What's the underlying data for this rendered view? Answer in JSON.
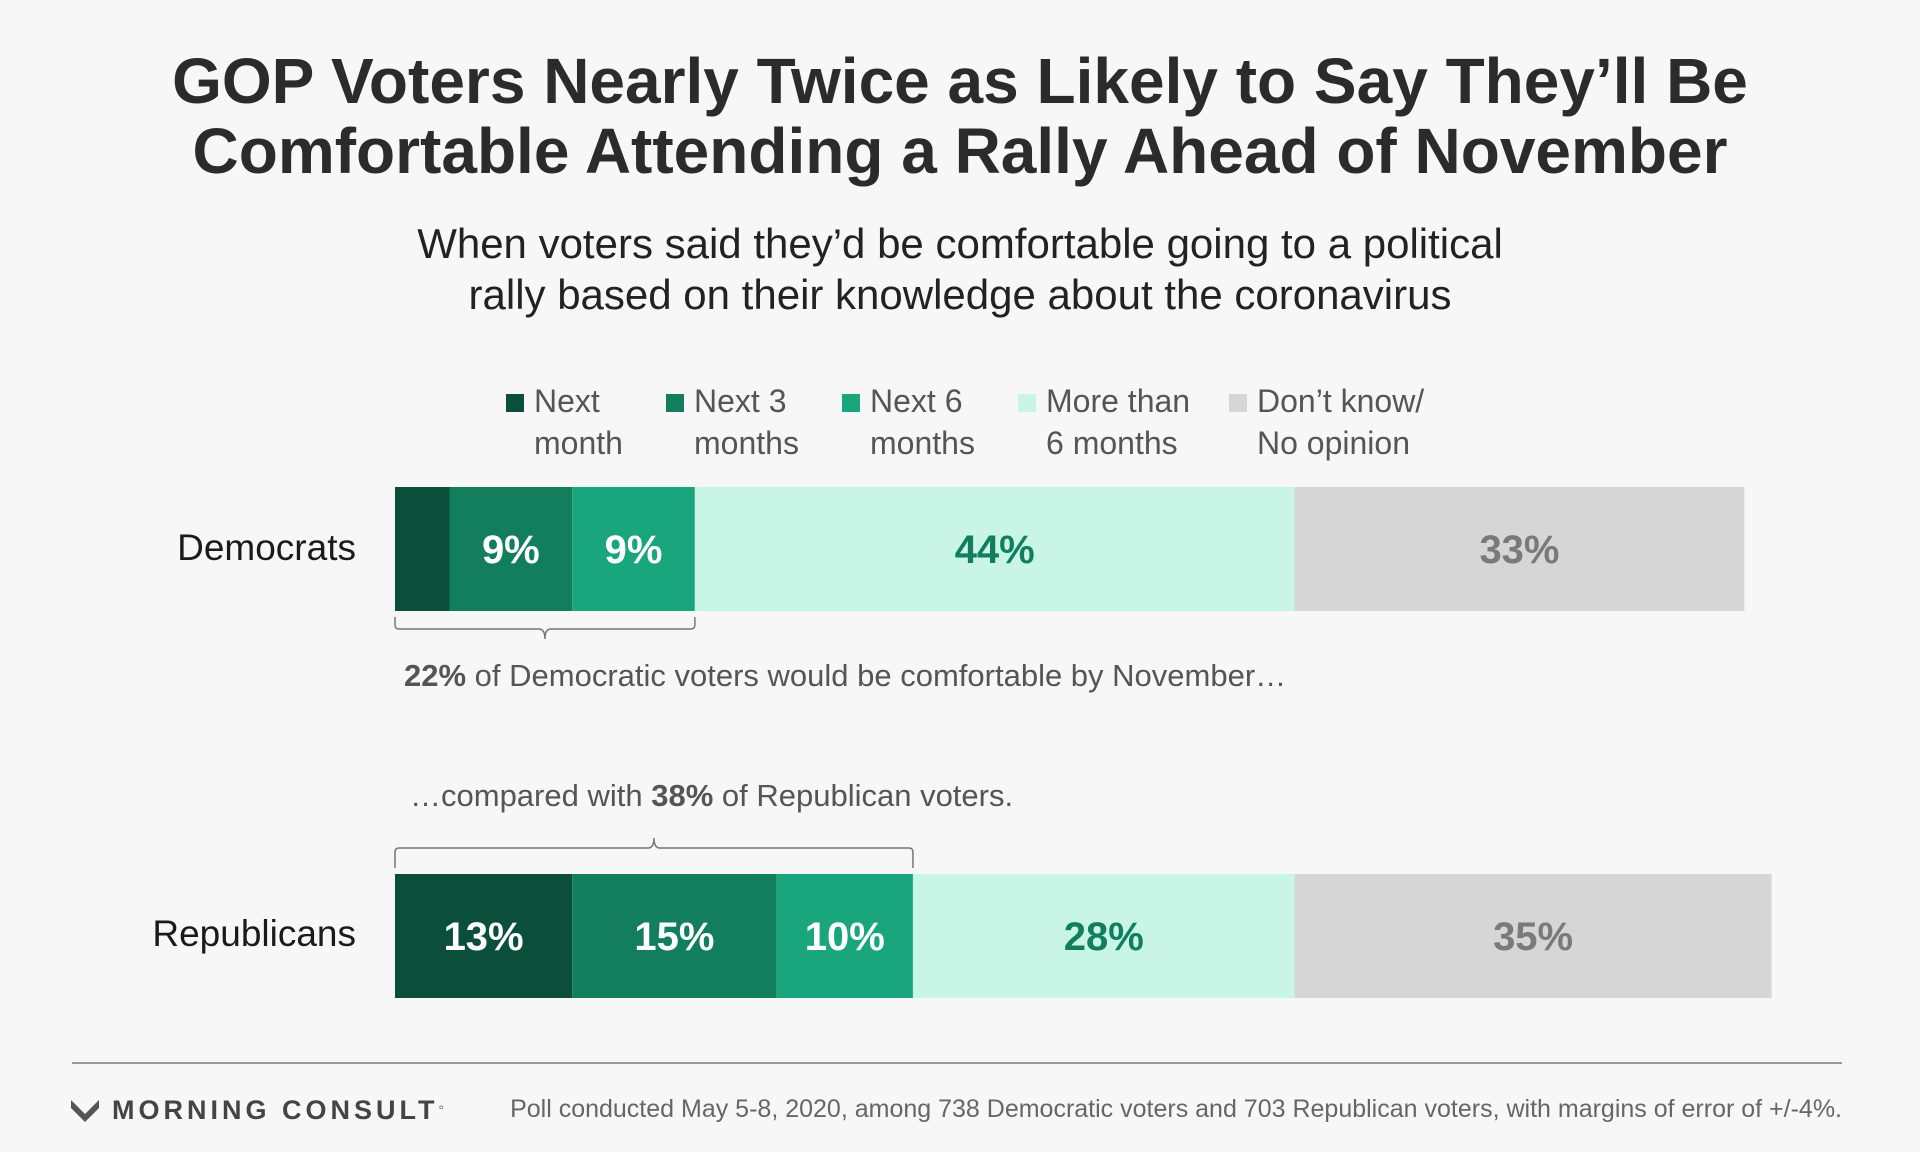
{
  "title_line1": "GOP Voters Nearly Twice as Likely to Say They’ll Be",
  "title_line2": "Comfortable Attending a Rally Ahead of November",
  "subtitle_line1": "When voters said they’d be comfortable going to a political",
  "subtitle_line2": "rally based on their knowledge about the coronavirus",
  "notes": {
    "democrats_value": "22%",
    "democrats_text": " of Democratic voters would be comfortable by November…",
    "republicans_prefix": "…compared with ",
    "republicans_value": "38%",
    "republicans_suffix": " of Republican voters."
  },
  "brand": "MORNING CONSULT",
  "brand_mark": "°",
  "footnote": "Poll conducted May 5-8, 2020, among 738 Democratic voters and 703 Republican voters, with margins of error of +/-4%.",
  "chart_data": {
    "type": "bar",
    "orientation": "horizontal",
    "stacked": true,
    "xlim": [
      0,
      100
    ],
    "categories": [
      "Democrats",
      "Republicans"
    ],
    "legend_position": "top",
    "series": [
      {
        "name": "Next\nmonth",
        "color": "#0b4f3b",
        "values": [
          4,
          13
        ],
        "labels": [
          "",
          "13%"
        ],
        "label_color": "#ffffff"
      },
      {
        "name": "Next 3\nmonths",
        "color": "#137e5c",
        "values": [
          9,
          15
        ],
        "labels": [
          "9%",
          "15%"
        ],
        "label_color": "#ffffff"
      },
      {
        "name": "Next 6\nmonths",
        "color": "#1aa67c",
        "values": [
          9,
          10
        ],
        "labels": [
          "9%",
          "10%"
        ],
        "label_color": "#ffffff"
      },
      {
        "name": "More than\n6 months",
        "color": "#c8f5e6",
        "values": [
          44,
          28
        ],
        "labels": [
          "44%",
          "28%"
        ],
        "label_color": "#137e5c"
      },
      {
        "name": "Don’t know/\nNo opinion",
        "color": "#d6d6d6",
        "values": [
          33,
          35
        ],
        "labels": [
          "33%",
          "35%"
        ],
        "label_color": "#7a7a7a"
      }
    ]
  }
}
